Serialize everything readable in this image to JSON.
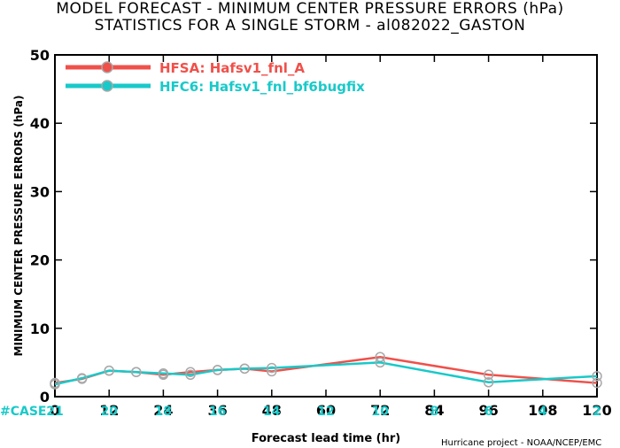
{
  "title_line1": "MODEL FORECAST - MINIMUM CENTER PRESSURE ERRORS (hPa)",
  "title_line2": "STATISTICS FOR A SINGLE STORM - al082022_GASTON",
  "credit": "Hurricane project - NOAA/NCEP/EMC",
  "case_label": "#CASE",
  "chart_data": {
    "type": "line",
    "xlabel": "Forecast lead time (hr)",
    "ylabel": "MINIMUM CENTER PRESSURE ERRORS (hPa)",
    "xlim": [
      0,
      120
    ],
    "ylim": [
      0,
      50
    ],
    "xticks": [
      "0",
      "12",
      "24",
      "36",
      "48",
      "60",
      "72",
      "84",
      "96",
      "108",
      "120"
    ],
    "yticks": [
      "0",
      "10",
      "20",
      "30",
      "40",
      "50"
    ],
    "case_x": [
      0,
      12,
      24,
      36,
      48,
      60,
      72,
      84,
      96,
      108,
      120
    ],
    "case_counts": [
      "21",
      "20",
      "18",
      "16",
      "14",
      "12",
      "10",
      "8",
      "6",
      "4",
      "2"
    ],
    "legend_position": "top-left",
    "grid": false,
    "series": [
      {
        "name": "HFSA: Hafsv1_fnl_A",
        "color": "#f0504a",
        "x": [
          0,
          6,
          12,
          18,
          24,
          30,
          36,
          42,
          48,
          72,
          96,
          120
        ],
        "y": [
          2.0,
          2.6,
          3.8,
          3.6,
          3.2,
          3.6,
          3.9,
          4.1,
          3.7,
          5.8,
          3.2,
          2.0
        ]
      },
      {
        "name": "HFC6: Hafsv1_fnl_bf6bugfix",
        "color": "#19c9c9",
        "x": [
          0,
          6,
          12,
          18,
          24,
          30,
          36,
          42,
          48,
          72,
          96,
          120
        ],
        "y": [
          1.8,
          2.7,
          3.8,
          3.6,
          3.4,
          3.2,
          3.9,
          4.1,
          4.2,
          5.0,
          2.1,
          3.0
        ]
      }
    ]
  }
}
